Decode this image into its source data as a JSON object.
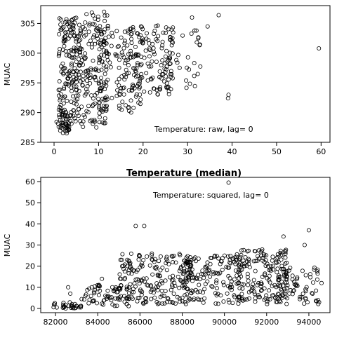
{
  "chart_data": [
    {
      "type": "scatter",
      "ylabel": "MUAC",
      "xlabel": "Temperature (median)",
      "annotation": "Temperature: raw, lag=  0",
      "xlim": [
        -3,
        62
      ],
      "ylim": [
        285,
        308
      ],
      "xticks": [
        0,
        10,
        20,
        30,
        40,
        50,
        60
      ],
      "yticks": [
        285,
        290,
        295,
        300,
        305
      ],
      "grid": false,
      "clusters": [
        {
          "x": [
            0.5,
            4
          ],
          "y": [
            286.5,
            290
          ],
          "n": 40
        },
        {
          "x": [
            1,
            6
          ],
          "y": [
            288,
            306
          ],
          "n": 170
        },
        {
          "x": [
            5,
            12
          ],
          "y": [
            288,
            307
          ],
          "n": 160
        },
        {
          "x": [
            10,
            20
          ],
          "y": [
            290,
            305
          ],
          "n": 130
        },
        {
          "x": [
            17,
            27
          ],
          "y": [
            293,
            305
          ],
          "n": 120
        },
        {
          "x": [
            24,
            33
          ],
          "y": [
            294,
            304
          ],
          "n": 40
        }
      ],
      "points": [
        [
          59.5,
          300.8
        ],
        [
          39.2,
          293.0
        ],
        [
          39.1,
          292.4
        ],
        [
          37.0,
          306.4
        ],
        [
          34.5,
          304.5
        ],
        [
          32.0,
          303.8
        ],
        [
          32.3,
          296.5
        ],
        [
          31.0,
          306.0
        ],
        [
          9.5,
          287.5
        ],
        [
          6.5,
          287.6
        ]
      ]
    },
    {
      "type": "scatter",
      "ylabel": "MUAC",
      "xlabel": "",
      "annotation": "Temperature: squared, lag=  0",
      "xlim": [
        81300,
        95000
      ],
      "ylim": [
        -2,
        62
      ],
      "xticks": [
        82000,
        84000,
        86000,
        88000,
        90000,
        92000,
        94000
      ],
      "yticks": [
        0,
        10,
        20,
        30,
        40,
        50,
        60
      ],
      "grid": false,
      "clusters": [
        {
          "x": [
            81800,
            83200
          ],
          "y": [
            0,
            3
          ],
          "n": 30
        },
        {
          "x": [
            83200,
            85500
          ],
          "y": [
            1,
            12
          ],
          "n": 70
        },
        {
          "x": [
            85000,
            88500
          ],
          "y": [
            2,
            26
          ],
          "n": 200
        },
        {
          "x": [
            88000,
            91000
          ],
          "y": [
            2,
            25
          ],
          "n": 160
        },
        {
          "x": [
            90500,
            93000
          ],
          "y": [
            2,
            28
          ],
          "n": 180
        },
        {
          "x": [
            92500,
            94500
          ],
          "y": [
            2,
            20
          ],
          "n": 60
        }
      ],
      "points": [
        [
          90200,
          59.5
        ],
        [
          85800,
          39
        ],
        [
          86200,
          39
        ],
        [
          94000,
          37
        ],
        [
          93800,
          30
        ],
        [
          92800,
          34
        ],
        [
          82600,
          10
        ],
        [
          82700,
          7
        ],
        [
          94600,
          12
        ],
        [
          84200,
          14
        ]
      ]
    }
  ]
}
